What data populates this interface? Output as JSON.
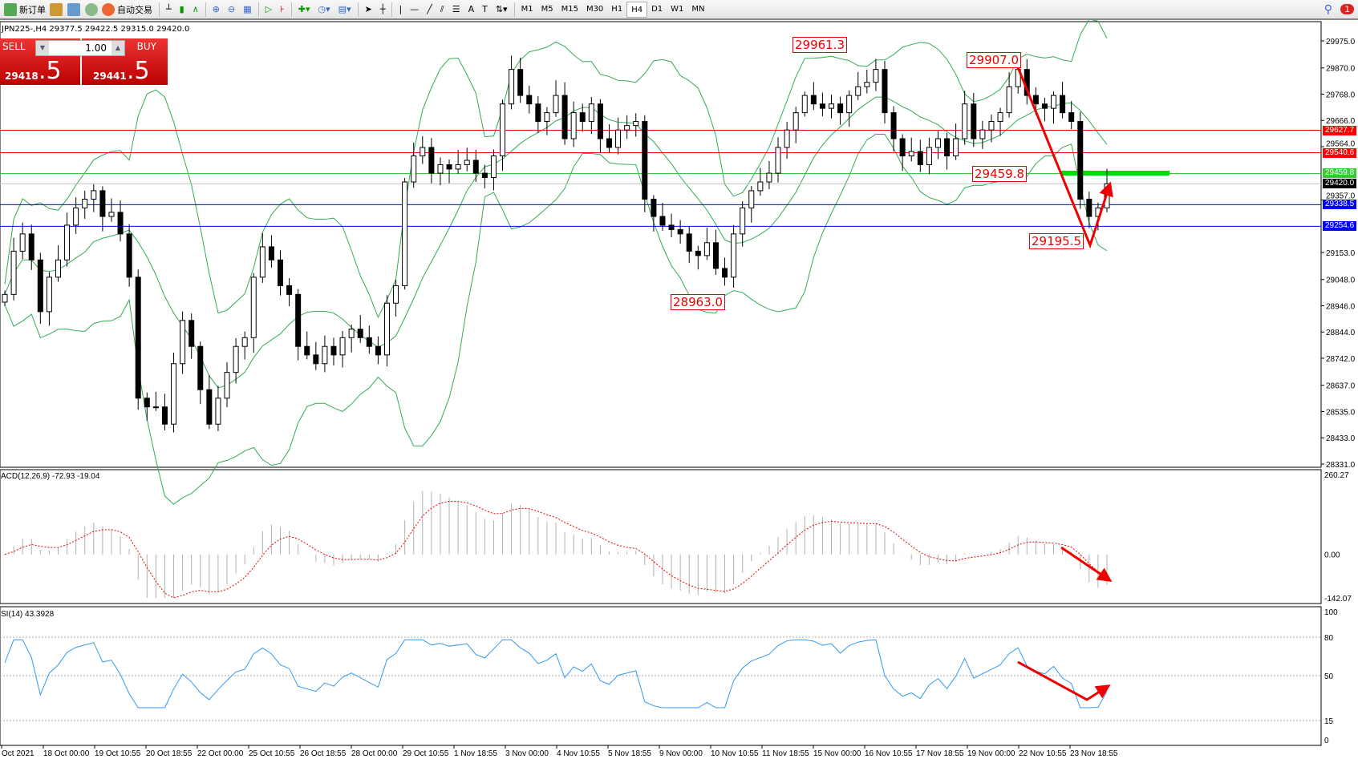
{
  "toolbar": {
    "new_order": "新订单",
    "auto_trading": "自动交易",
    "timeframes": [
      "M1",
      "M5",
      "M15",
      "M30",
      "H1",
      "H4",
      "D1",
      "W1",
      "MN"
    ],
    "active_timeframe": "H4",
    "notifications": "1"
  },
  "chart": {
    "info": "JPN225-,H4  29377.5 29422.5 29315.0 29420.0"
  },
  "trade": {
    "sell_label": "SELL",
    "buy_label": "BUY",
    "lot": "1.00",
    "sell_small": "29418",
    "sell_big": ".5",
    "buy_small": "29441",
    "buy_big": ".5"
  },
  "price_axis": {
    "max": 29975.0,
    "min": 28331.0,
    "ticks": [
      "29975.0",
      "29870.0",
      "29768.0",
      "29666.0",
      "29564.0",
      "29357.0",
      "29153.0",
      "29048.0",
      "28946.0",
      "28844.0",
      "28742.0",
      "28637.0",
      "28535.0",
      "28433.0",
      "28331.0"
    ]
  },
  "levels": [
    {
      "value": "29627.7",
      "color": "#ff0000"
    },
    {
      "value": "29540.6",
      "color": "#ff0000"
    },
    {
      "value": "29459.8",
      "color": "#33cc33"
    },
    {
      "value": "29420.0",
      "color": "#000000",
      "line": "#c0c0c0"
    },
    {
      "value": "29338.5",
      "color": "#0000ff"
    },
    {
      "value": "29254.6",
      "color": "#0000ff"
    }
  ],
  "annotations": [
    "29961.3",
    "29907.0",
    "29459.8",
    "29195.5",
    "28963.0"
  ],
  "closes": [
    28990,
    29158,
    29225,
    29124,
    28923,
    29057,
    29124,
    29259,
    29326,
    29360,
    29393,
    29293,
    29309,
    29225,
    29057,
    28587,
    28553,
    28553,
    28486,
    28721,
    28889,
    28788,
    28620,
    28486,
    28587,
    28687,
    28788,
    28822,
    29057,
    29175,
    29124,
    29024,
    28990,
    28788,
    28755,
    28721,
    28788,
    28755,
    28822,
    28855,
    28822,
    28788,
    28755,
    28956,
    29024,
    29427,
    29528,
    29561,
    29461,
    29494,
    29477,
    29494,
    29511,
    29461,
    29444,
    29528,
    29730,
    29864,
    29763,
    29730,
    29662,
    29696,
    29763,
    29595,
    29696,
    29662,
    29730,
    29595,
    29561,
    29629,
    29646,
    29662,
    29360,
    29293,
    29259,
    29242,
    29225,
    29158,
    29141,
    29191,
    29091,
    29057,
    29225,
    29326,
    29393,
    29427,
    29461,
    29561,
    29629,
    29696,
    29763,
    29730,
    29713,
    29730,
    29696,
    29763,
    29797,
    29814,
    29864,
    29696,
    29595,
    29528,
    29545,
    29494,
    29561,
    29595,
    29528,
    29595,
    29730,
    29595,
    29629,
    29662,
    29696,
    29797,
    29864,
    29763,
    29730,
    29713,
    29763,
    29696,
    29662,
    29360,
    29293,
    29326,
    29420
  ],
  "macd": {
    "label": "ACD(12,26,9) -72.93 -19.04",
    "max": "260.27",
    "zero": "0.00",
    "min": "-142.07"
  },
  "rsi": {
    "label": "SI(14) 43.3928",
    "levels": [
      "100",
      "80",
      "50",
      "15",
      "0"
    ]
  },
  "time_axis": [
    "Oct 2021",
    "18 Oct 00:00",
    "19 Oct 10:55",
    "20 Oct 18:55",
    "22 Oct 00:00",
    "25 Oct 10:55",
    "26 Oct 18:55",
    "28 Oct 00:00",
    "29 Oct 10:55",
    "1 Nov 18:55",
    "3 Nov 00:00",
    "4 Nov 10:55",
    "5 Nov 18:55",
    "9 Nov 00:00",
    "10 Nov 10:55",
    "11 Nov 18:55",
    "15 Nov 00:00",
    "16 Nov 10:55",
    "17 Nov 18:55",
    "19 Nov 00:00",
    "22 Nov 10:55",
    "23 Nov 18:55"
  ],
  "colors": {
    "bands": "#33aa55",
    "signal": "#ee0000",
    "histogram": "#b0b0b0",
    "rsi": "#3399ee",
    "arrow": "#ee0000"
  }
}
